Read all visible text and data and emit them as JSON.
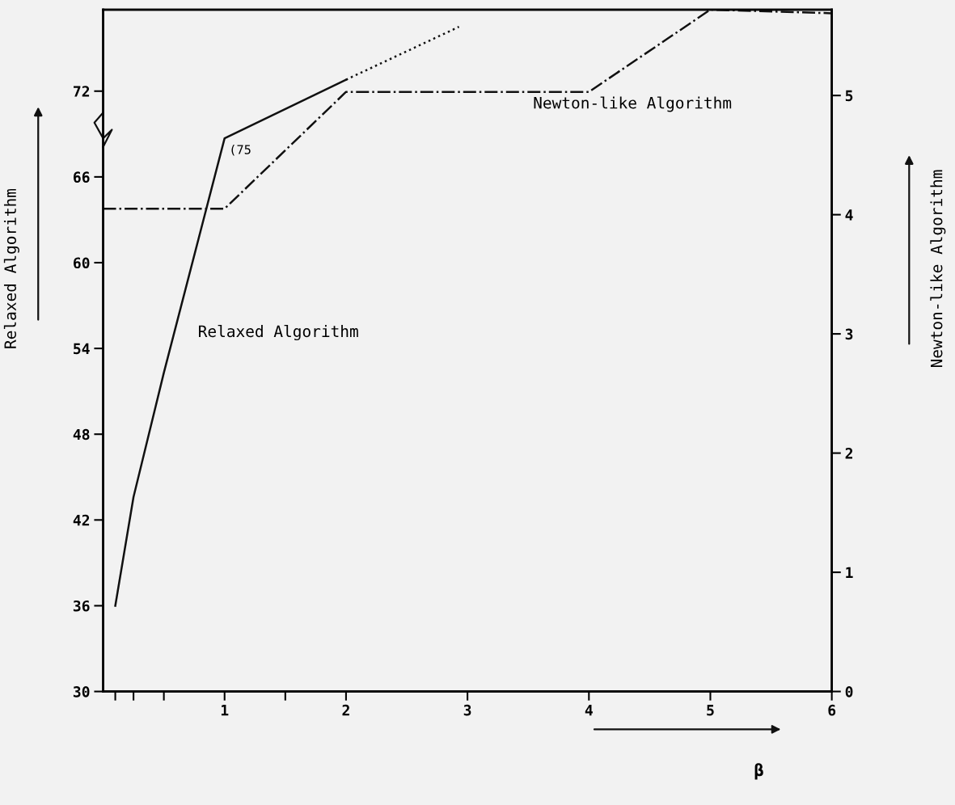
{
  "chart_data": {
    "type": "line",
    "xlabel": "β",
    "ylabel": "Relaxed Algorithm",
    "y2label": "Newton-like Algorithm",
    "xlim": [
      0,
      6
    ],
    "xticks": [
      {
        "value": 0.1,
        "label": null
      },
      {
        "value": 0.25,
        "label": null
      },
      {
        "value": 0.5,
        "label": null
      },
      1,
      {
        "value": 1.5,
        "label": null
      },
      2,
      3,
      4,
      5,
      6
    ],
    "ylim": [
      30,
      77.7
    ],
    "yticks": [
      {
        "value": 30,
        "label": "30"
      },
      36,
      42,
      48,
      54,
      60,
      66,
      72
    ],
    "y2lim": [
      0,
      5.72
    ],
    "y2ticks": [
      0,
      1,
      2,
      3,
      4,
      5
    ],
    "grid": false,
    "legend": false,
    "marker": "none",
    "series": [
      {
        "x": [
          0.1,
          0.25,
          0.5,
          1,
          2
        ],
        "values": [
          36,
          43.6,
          52.3,
          68.7,
          72.8
        ],
        "color": "#111111",
        "line_style": "solid"
      },
      {
        "x": [
          2,
          2.93
        ],
        "values": [
          72.8,
          76.5
        ],
        "color": "#111111",
        "line_style": "dotted"
      },
      {
        "x": [
          0,
          1,
          2,
          4,
          5,
          6
        ],
        "values": [
          4.05,
          4.05,
          5.03,
          5.03,
          5.72,
          5.69
        ],
        "color": "#111111",
        "line_style": "dashdot",
        "axis": "y2"
      }
    ],
    "annotations": [
      "Relaxed Algorithm",
      "Newton-like Algorithm",
      {
        "text": "(75",
        "x": 1,
        "y": 68.7
      }
    ]
  }
}
